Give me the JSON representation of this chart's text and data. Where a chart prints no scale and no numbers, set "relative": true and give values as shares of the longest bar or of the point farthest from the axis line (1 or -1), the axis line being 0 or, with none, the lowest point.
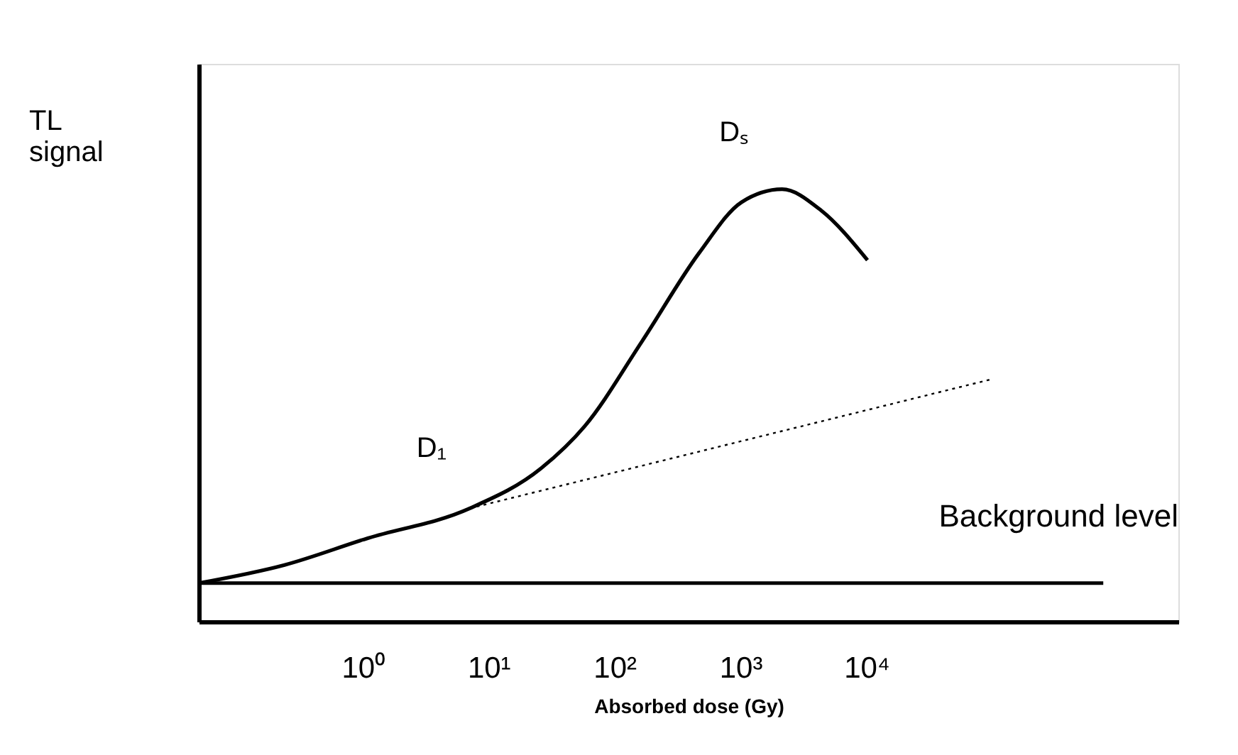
{
  "chart_data": {
    "type": "line",
    "relative": true,
    "log": "x",
    "xlabel": "Absorbed dose (Gy)",
    "ylabel": "TL signal",
    "tick_labels": "x",
    "grid": false,
    "xlim": [
      0.05,
      3000000
    ],
    "xticks": [
      {
        "value": 1,
        "label": "10⁰"
      },
      {
        "value": 10,
        "label": "10¹"
      },
      {
        "value": 100,
        "label": "10²"
      },
      {
        "value": 1000,
        "label": "10³"
      },
      {
        "value": 10000,
        "label": "10⁴"
      }
    ],
    "series": [
      {
        "color": "#000000",
        "line_style": "solid",
        "x": [
          0.05,
          0.24,
          1.1,
          7.1,
          26,
          58,
          166,
          468,
          1020,
          2140,
          4370,
          10200
        ],
        "values": [
          0.089,
          0.131,
          0.193,
          0.262,
          0.354,
          0.452,
          0.649,
          0.852,
          0.97,
          1.0,
          0.951,
          0.836
        ]
      },
      {
        "color": "#000000",
        "line_style": "dotted",
        "x": [
          7.1,
          100000
        ],
        "values": [
          0.262,
          0.561
        ]
      },
      {
        "name": "Background level",
        "color": "#000000",
        "line_style": "solid",
        "x": [
          0.05,
          760000
        ],
        "values": [
          0.089,
          0.089
        ]
      }
    ],
    "annotations": [
      "D₁",
      "Dₛ"
    ]
  }
}
